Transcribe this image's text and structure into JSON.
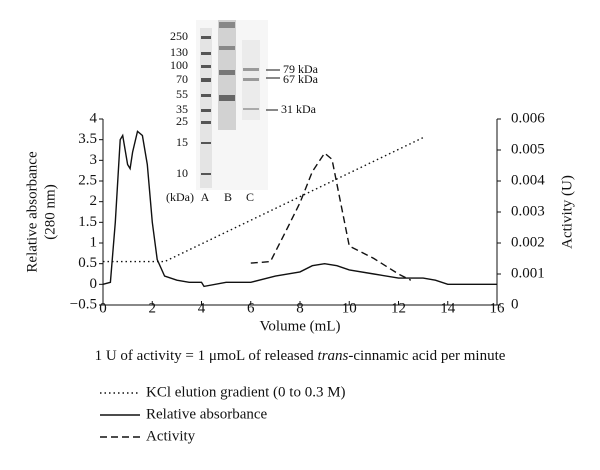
{
  "chart_data": {
    "type": "line",
    "xlabel": "Volume (mL)",
    "ylabel": "Relative absorbance",
    "ylabel_unit": "(280 nm)",
    "y2label": "Activity (U)",
    "xlim": [
      0,
      16
    ],
    "xticks": [
      0,
      2,
      4,
      6,
      8,
      10,
      12,
      14,
      16
    ],
    "ylim": [
      -0.5,
      4
    ],
    "yticks": [
      {
        "value": -0.5,
        "label": "−0.5"
      },
      0,
      0.5,
      1,
      1.5,
      2,
      2.5,
      3,
      3.5,
      4
    ],
    "y2lim": [
      0,
      0.006
    ],
    "y2ticks": [
      0,
      0.001,
      0.002,
      0.003,
      0.004,
      0.005,
      0.006
    ],
    "note_parts": [
      "1 U of activity = 1 μmoL of released ",
      "trans",
      "-cinnamic acid per minute"
    ],
    "series": [
      {
        "name": "KCl elution gradient (0 to 0.3 M)",
        "color": "#111",
        "dash": "1.5 3",
        "x": [
          0,
          2.5,
          13
        ],
        "values": [
          0.55,
          0.55,
          3.55
        ]
      },
      {
        "name": "Relative absorbance",
        "color": "#111",
        "dash": "none",
        "x": [
          0,
          0.3,
          0.5,
          0.7,
          0.8,
          1.0,
          1.1,
          1.2,
          1.4,
          1.6,
          1.8,
          2.0,
          2.2,
          2.5,
          3,
          3.5,
          4,
          4.1,
          5,
          6,
          7,
          8,
          8.5,
          9,
          9.5,
          10,
          11,
          12,
          13,
          13.5,
          14,
          16
        ],
        "values": [
          0,
          0.05,
          1.5,
          3.5,
          3.6,
          2.9,
          2.8,
          3.2,
          3.7,
          3.6,
          2.9,
          1.5,
          0.6,
          0.2,
          0.1,
          0.05,
          0.05,
          -0.05,
          0.05,
          0.05,
          0.2,
          0.3,
          0.45,
          0.5,
          0.45,
          0.35,
          0.25,
          0.15,
          0.15,
          0.1,
          0,
          0
        ]
      },
      {
        "name": "Activity",
        "color": "#111",
        "dash": "7 4",
        "axis": "y2",
        "x": [
          6,
          6.8,
          7.5,
          8,
          8.5,
          9,
          9.3,
          9.6,
          10,
          10.5,
          11,
          12,
          12.5
        ],
        "values": [
          0.00135,
          0.0014,
          0.0025,
          0.0033,
          0.0043,
          0.0049,
          0.0047,
          0.0035,
          0.0019,
          0.0017,
          0.0015,
          0.001,
          0.0008
        ]
      }
    ],
    "inset": {
      "ladder": [
        "250",
        "130",
        "100",
        "70",
        "55",
        "35",
        "25",
        "15",
        "10"
      ],
      "lanes": [
        "(kDa)",
        "A",
        "B",
        "C"
      ],
      "bands": [
        "79 kDa",
        "67 kDa",
        "31 kDa"
      ]
    }
  }
}
